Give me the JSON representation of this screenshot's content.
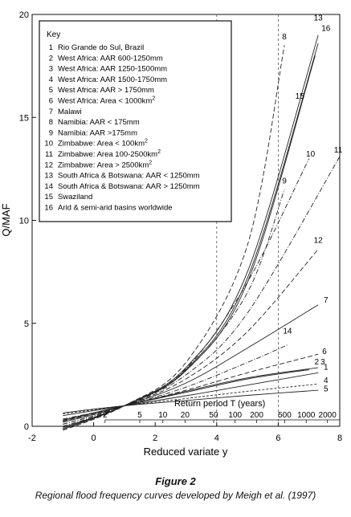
{
  "figure": {
    "number": "Figure 2",
    "caption": "Regional flood frequency curves developed by Meigh et al. (1997)"
  },
  "chart_data": {
    "type": "line",
    "title": "",
    "xlabel": "Reduced variate y",
    "ylabel": "Q/MAF",
    "xlim": [
      -2,
      8
    ],
    "ylim": [
      0,
      20
    ],
    "x_ticks": [
      -2,
      0,
      2,
      4,
      6,
      8
    ],
    "y_ticks": [
      0,
      5,
      10,
      15,
      20
    ],
    "grid": "dashed gridlines at x = 4 and x = 6",
    "legend": {
      "title": "Key",
      "placement": "top-left",
      "entries": [
        {
          "num": "1",
          "text": "Rio Grande do Sul, Brazil"
        },
        {
          "num": "2",
          "text": "West Africa: AAR 600-1250mm"
        },
        {
          "num": "3",
          "text": "West Africa: AAR 1250-1500mm"
        },
        {
          "num": "4",
          "text": "West Africa: AAR 1500-1750mm"
        },
        {
          "num": "5",
          "text": "West Africa: AAR > 1750mm"
        },
        {
          "num": "6",
          "text": "West Africa: Area < 1000km",
          "sup": "2"
        },
        {
          "num": "7",
          "text": "Malawi"
        },
        {
          "num": "8",
          "text": "Namibia: AAR < 175mm"
        },
        {
          "num": "9",
          "text": "Namibia: AAR >175mm"
        },
        {
          "num": "10",
          "text": "Zimbabwe: Area  < 100km",
          "sup": "2"
        },
        {
          "num": "11",
          "text": "Zimbabwe: Area 100-2500km",
          "sup": "2"
        },
        {
          "num": "12",
          "text": "Zimbabwe: Area > 2500km",
          "sup": "2"
        },
        {
          "num": "13",
          "text": "South Africa & Botswana: AAR  < 1250mm"
        },
        {
          "num": "14",
          "text": "South Africa & Botswana: AAR > 1250mm"
        },
        {
          "num": "15",
          "text": "Swaziland"
        },
        {
          "num": "16",
          "text": "Arid & semi-arid basins worldwide"
        }
      ]
    },
    "return_period": {
      "title": "Return period T (years)",
      "ticks": [
        {
          "label": "2",
          "y": 0.37
        },
        {
          "label": "5",
          "y": 1.5
        },
        {
          "label": "10",
          "y": 2.25
        },
        {
          "label": "20",
          "y": 2.97
        },
        {
          "label": "50",
          "y": 3.9
        },
        {
          "label": "100",
          "y": 4.6
        },
        {
          "label": "200",
          "y": 5.3
        },
        {
          "label": "500",
          "y": 6.21
        },
        {
          "label": "1000",
          "y": 6.91
        },
        {
          "label": "2000",
          "y": 7.6
        }
      ]
    },
    "series": [
      {
        "name": "1",
        "dash": "",
        "x": [
          -1,
          1,
          3,
          5,
          7.3
        ],
        "y": [
          0.52,
          1.0,
          1.48,
          2.0,
          2.6
        ]
      },
      {
        "name": "2",
        "dash": "",
        "x": [
          -1,
          1,
          3,
          5,
          7.0
        ],
        "y": [
          0.3,
          1.0,
          1.65,
          2.3,
          2.75
        ]
      },
      {
        "name": "3",
        "dash": "",
        "x": [
          -1,
          1,
          3,
          5,
          7.3
        ],
        "y": [
          0.28,
          1.0,
          1.7,
          2.35,
          2.85
        ]
      },
      {
        "name": "4",
        "dash": "3,2",
        "x": [
          -1,
          1,
          3,
          5,
          7.3
        ],
        "y": [
          0.6,
          1.0,
          1.35,
          1.7,
          2.05
        ]
      },
      {
        "name": "5",
        "dash": "",
        "x": [
          -1,
          1,
          3,
          5,
          7.3
        ],
        "y": [
          0.65,
          1.0,
          1.25,
          1.5,
          1.75
        ]
      },
      {
        "name": "6",
        "dash": "6,3",
        "x": [
          -1,
          1,
          3,
          5,
          7.3
        ],
        "y": [
          0.25,
          1.0,
          1.75,
          2.6,
          3.5
        ]
      },
      {
        "name": "7",
        "dash": "",
        "x": [
          -1,
          1,
          3,
          5,
          7.3
        ],
        "y": [
          0.2,
          1.0,
          2.1,
          3.8,
          5.9
        ]
      },
      {
        "name": "8",
        "dash": "6,3",
        "x": [
          -1,
          1,
          3,
          5,
          6.2
        ],
        "y": [
          -0.2,
          1.0,
          3.1,
          8.8,
          18.5
        ]
      },
      {
        "name": "9",
        "dash": "6,2,1,2",
        "x": [
          -1,
          1,
          3,
          5,
          6.2
        ],
        "y": [
          0.1,
          1.0,
          2.7,
          6.5,
          11.5
        ]
      },
      {
        "name": "10",
        "dash": "6,2,1,2",
        "x": [
          -1,
          1,
          3,
          5,
          7.0
        ],
        "y": [
          0.0,
          1.0,
          2.8,
          7.0,
          13.0
        ]
      },
      {
        "name": "11",
        "dash": "6,2,1,2",
        "x": [
          -1,
          1,
          3,
          5,
          8.0
        ],
        "y": [
          0.1,
          1.0,
          2.5,
          5.5,
          13.1
        ]
      },
      {
        "name": "12",
        "dash": "6,3",
        "x": [
          -1,
          1,
          3,
          5,
          7.3
        ],
        "y": [
          0.2,
          1.0,
          2.3,
          4.6,
          8.6
        ]
      },
      {
        "name": "13",
        "dash": "",
        "x": [
          -1,
          1,
          3,
          5,
          7.3
        ],
        "y": [
          -0.15,
          1.0,
          2.85,
          7.5,
          19.0
        ]
      },
      {
        "name": "14",
        "dash": "6,2,1,2",
        "x": [
          -1,
          1,
          3,
          5,
          6.3
        ],
        "y": [
          0.35,
          1.0,
          1.9,
          3.1,
          3.95
        ]
      },
      {
        "name": "15",
        "dash": "",
        "x": [
          -1,
          1,
          3,
          5,
          7.2
        ],
        "y": [
          -0.1,
          1.0,
          2.7,
          7.0,
          18.0
        ]
      },
      {
        "name": "16",
        "dash": "",
        "x": [
          -1,
          1,
          3,
          5,
          7.3
        ],
        "y": [
          -0.05,
          1.0,
          2.75,
          7.2,
          18.6
        ]
      }
    ],
    "curve_labels": [
      {
        "num": "1",
        "x": 7.55,
        "y": 2.75
      },
      {
        "num": "2",
        "x": 7.25,
        "y": 3.0
      },
      {
        "num": "3",
        "x": 7.45,
        "y": 3.0
      },
      {
        "num": "4",
        "x": 7.55,
        "y": 2.1
      },
      {
        "num": "5",
        "x": 7.55,
        "y": 1.7
      },
      {
        "num": "6",
        "x": 7.5,
        "y": 3.5
      },
      {
        "num": "7",
        "x": 7.55,
        "y": 6.0
      },
      {
        "num": "8",
        "x": 6.2,
        "y": 18.8
      },
      {
        "num": "9",
        "x": 6.2,
        "y": 11.8
      },
      {
        "num": "10",
        "x": 7.05,
        "y": 13.1
      },
      {
        "num": "11",
        "x": 7.95,
        "y": 13.3
      },
      {
        "num": "12",
        "x": 7.3,
        "y": 8.9
      },
      {
        "num": "13",
        "x": 7.3,
        "y": 19.7
      },
      {
        "num": "14",
        "x": 6.3,
        "y": 4.5
      },
      {
        "num": "15",
        "x": 6.7,
        "y": 15.9
      },
      {
        "num": "16",
        "x": 7.55,
        "y": 19.2
      }
    ]
  }
}
